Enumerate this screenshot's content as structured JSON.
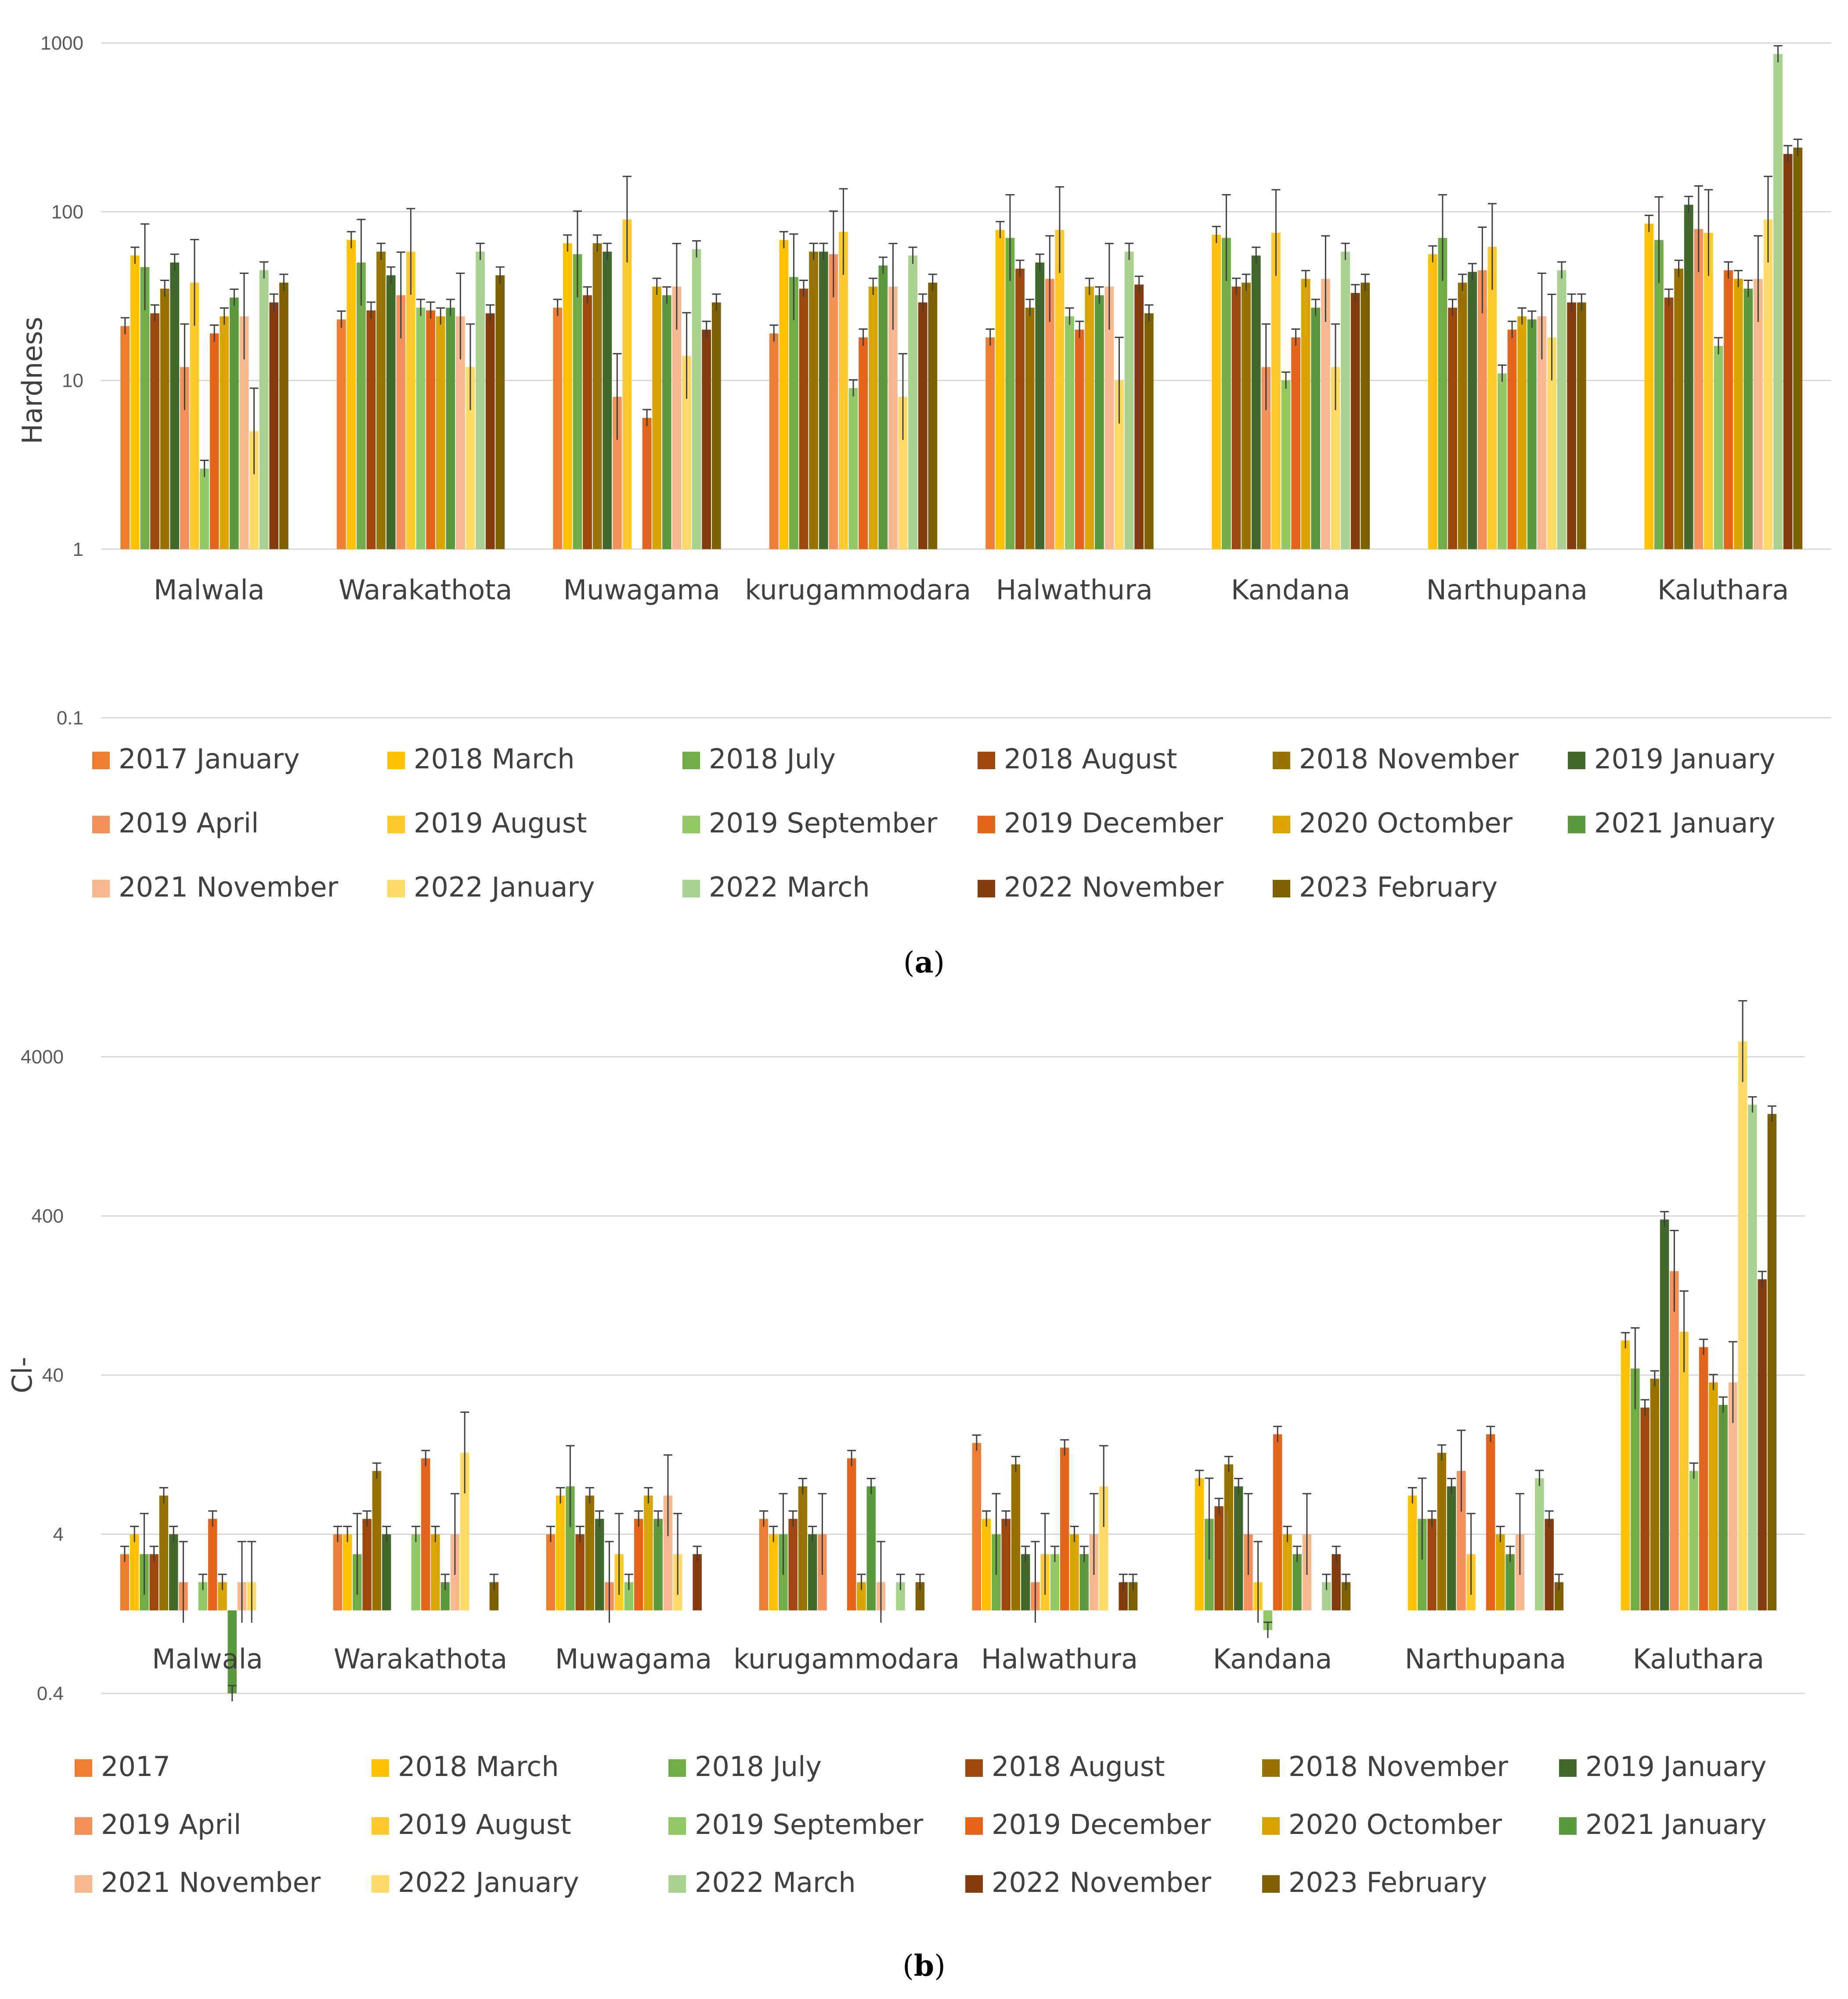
{
  "chart_data": [
    {
      "id": "a",
      "type": "bar",
      "scale": "log",
      "subplot_label": "a",
      "ylabel": "Hardness",
      "y_ticks": [
        "1000",
        "100",
        "10",
        "1",
        "0.1"
      ],
      "ylim": [
        0.1,
        1000
      ],
      "categories": [
        "Malwala",
        "Warakathota",
        "Muwagama",
        "kurugammodara",
        "Halwathura",
        "Kandana",
        "Narthupana",
        "Kaluthara"
      ],
      "series": [
        {
          "name": "2017 January",
          "color": "#ed7d31",
          "values": [
            21,
            23,
            27,
            19,
            18,
            null,
            null,
            null
          ]
        },
        {
          "name": "2018 March",
          "color": "#ffc000",
          "values": [
            55,
            68,
            65,
            68,
            78,
            73,
            56,
            85
          ]
        },
        {
          "name": "2018 July",
          "color": "#70ad47",
          "values": [
            47,
            50,
            56,
            41,
            70,
            70,
            70,
            68
          ]
        },
        {
          "name": "2018 August",
          "color": "#9e480e",
          "values": [
            25,
            26,
            32,
            35,
            46,
            36,
            27,
            31
          ]
        },
        {
          "name": "2018 November",
          "color": "#997300",
          "values": [
            35,
            58,
            65,
            58,
            27,
            38,
            38,
            46
          ]
        },
        {
          "name": "2019 January",
          "color": "#43682b",
          "values": [
            50,
            42,
            58,
            58,
            50,
            55,
            44,
            110
          ]
        },
        {
          "name": "2019 April",
          "color": "#f4915a",
          "values": [
            12,
            32,
            8,
            56,
            40,
            12,
            45,
            79
          ]
        },
        {
          "name": "2019 August",
          "color": "#ffc92c",
          "values": [
            38,
            58,
            90,
            76,
            78,
            75,
            62,
            75
          ]
        },
        {
          "name": "2019 September",
          "color": "#8fc865",
          "values": [
            3,
            27,
            null,
            9,
            24,
            10,
            11,
            16
          ]
        },
        {
          "name": "2019 December",
          "color": "#e4641a",
          "values": [
            19,
            26,
            6,
            18,
            20,
            18,
            20,
            45
          ]
        },
        {
          "name": "2020 Octomber",
          "color": "#d9a400",
          "values": [
            24,
            24,
            36,
            36,
            36,
            40,
            24,
            40
          ]
        },
        {
          "name": "2021 January",
          "color": "#5b9a3c",
          "values": [
            31,
            27,
            32,
            48,
            32,
            27,
            23,
            35
          ]
        },
        {
          "name": "2021 November",
          "color": "#f7b88f",
          "values": [
            24,
            24,
            36,
            36,
            36,
            40,
            24,
            40
          ]
        },
        {
          "name": "2022 January",
          "color": "#ffd966",
          "values": [
            5,
            12,
            14,
            8,
            10,
            12,
            18,
            90
          ]
        },
        {
          "name": "2022 March",
          "color": "#a9d18e",
          "values": [
            45,
            58,
            60,
            55,
            58,
            58,
            45,
            860
          ]
        },
        {
          "name": "2022 November",
          "color": "#843c0c",
          "values": [
            29,
            25,
            20,
            29,
            37,
            33,
            29,
            220
          ]
        },
        {
          "name": "2023 February",
          "color": "#7f6000",
          "values": [
            38,
            42,
            29,
            38,
            25,
            38,
            29,
            240
          ]
        }
      ]
    },
    {
      "id": "b",
      "type": "bar",
      "scale": "log",
      "subplot_label": "b",
      "ylabel": "Cl-",
      "y_ticks": [
        "4000",
        "400",
        "40",
        "4",
        "0.4"
      ],
      "ylim": [
        0.4,
        4000
      ],
      "categories": [
        "Malwala",
        "Warakathota",
        "Muwagama",
        "kurugammodara",
        "Halwathura",
        "Kandana",
        "Narthupana",
        "Kaluthara"
      ],
      "series": [
        {
          "name": "2017",
          "color": "#ed7d31",
          "values": [
            3,
            4,
            4,
            5,
            15,
            null,
            null,
            null
          ]
        },
        {
          "name": "2018 March",
          "color": "#ffc000",
          "values": [
            4,
            4,
            7,
            4,
            5,
            9,
            7,
            66
          ]
        },
        {
          "name": "2018 July",
          "color": "#70ad47",
          "values": [
            3,
            3,
            8,
            4,
            4,
            5,
            5,
            44
          ]
        },
        {
          "name": "2018 August",
          "color": "#9e480e",
          "values": [
            3,
            5,
            4,
            5,
            5,
            6,
            5,
            25
          ]
        },
        {
          "name": "2018 November",
          "color": "#997300",
          "values": [
            7,
            10,
            7,
            8,
            11,
            11,
            13,
            38
          ]
        },
        {
          "name": "2019 January",
          "color": "#43682b",
          "values": [
            4,
            4,
            5,
            4,
            3,
            8,
            8,
            380
          ]
        },
        {
          "name": "2019 April",
          "color": "#f4915a",
          "values": [
            2,
            null,
            2,
            4,
            2,
            4,
            10,
            180
          ]
        },
        {
          "name": "2019 August",
          "color": "#ffc92c",
          "values": [
            null,
            null,
            3,
            null,
            3,
            2,
            3,
            75
          ]
        },
        {
          "name": "2019 September",
          "color": "#8fc865",
          "values": [
            2,
            4,
            2,
            null,
            3,
            1,
            null,
            10
          ]
        },
        {
          "name": "2019 December",
          "color": "#e4641a",
          "values": [
            5,
            12,
            5,
            12,
            14,
            17,
            17,
            60
          ]
        },
        {
          "name": "2020 Octomber",
          "color": "#d9a400",
          "values": [
            2,
            4,
            7,
            2,
            4,
            4,
            4,
            36
          ]
        },
        {
          "name": "2021 January",
          "color": "#5b9a3c",
          "values": [
            0.4,
            2,
            5,
            8,
            3,
            3,
            3,
            26
          ]
        },
        {
          "name": "2021 November",
          "color": "#f7b88f",
          "values": [
            2,
            4,
            7,
            2,
            4,
            4,
            4,
            36
          ]
        },
        {
          "name": "2022 January",
          "color": "#ffd966",
          "values": [
            2,
            13,
            3,
            null,
            8,
            null,
            null,
            5000
          ]
        },
        {
          "name": "2022 March",
          "color": "#a9d18e",
          "values": [
            null,
            null,
            null,
            2,
            null,
            2,
            9,
            2000
          ]
        },
        {
          "name": "2022 November",
          "color": "#843c0c",
          "values": [
            null,
            null,
            3,
            null,
            2,
            3,
            5,
            160
          ]
        },
        {
          "name": "2023 February",
          "color": "#7f6000",
          "values": [
            null,
            2,
            null,
            2,
            2,
            2,
            2,
            1750
          ]
        }
      ]
    }
  ]
}
